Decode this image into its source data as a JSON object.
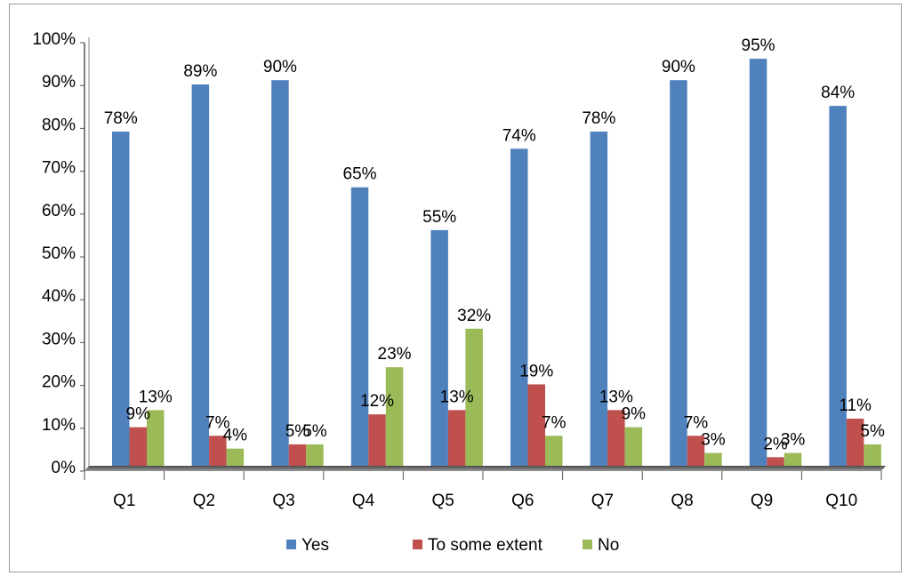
{
  "chart_data": {
    "type": "bar",
    "title": "",
    "xlabel": "",
    "ylabel": "",
    "categories": [
      "Q1",
      "Q2",
      "Q3",
      "Q4",
      "Q5",
      "Q6",
      "Q7",
      "Q8",
      "Q9",
      "Q10"
    ],
    "series": [
      {
        "name": "Yes",
        "color": "#4F81BD",
        "values": [
          78,
          89,
          90,
          65,
          55,
          74,
          78,
          90,
          95,
          84
        ]
      },
      {
        "name": "To some extent",
        "color": "#C0504D",
        "values": [
          9,
          7,
          5,
          12,
          13,
          19,
          13,
          7,
          2,
          11
        ]
      },
      {
        "name": "No",
        "color": "#9BBB59",
        "values": [
          13,
          4,
          5,
          23,
          32,
          7,
          9,
          3,
          3,
          5
        ]
      }
    ],
    "ylim": [
      0,
      100
    ],
    "yticks": [
      "0%",
      "10%",
      "20%",
      "30%",
      "40%",
      "50%",
      "60%",
      "70%",
      "80%",
      "90%",
      "100%"
    ],
    "value_suffix": "%",
    "grid": false,
    "legend_position": "bottom"
  }
}
